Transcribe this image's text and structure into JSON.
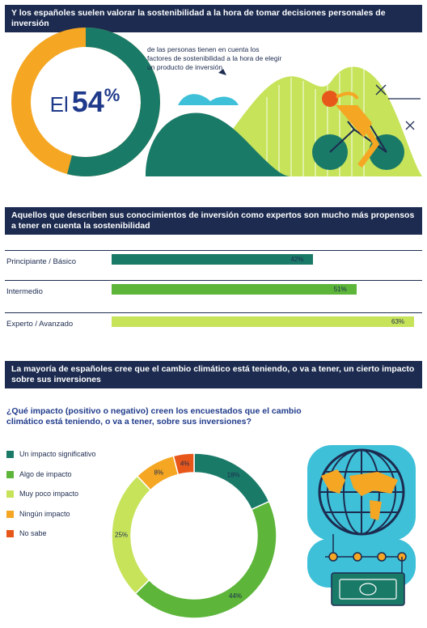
{
  "banner1": "Y los españoles suelen valorar la sostenibilidad a la hora de tomar decisiones personales de inversión",
  "stat": {
    "prefix": "El",
    "number": "54",
    "suffix": "%",
    "value": 54,
    "description": "de las personas tienen en cuenta los factores de sostenibilidad a la hora de elegir un producto de inversión"
  },
  "banner2": "Aquellos que describen sus conocimientos de inversión como expertos son mucho más propensos a tener en cuenta la sostenibilidad",
  "banner3": "La mayoría de españoles cree que el cambio climático está teniendo, o va a tener, un cierto impacto sobre sus inversiones",
  "question": "¿Qué impacto (positivo o negativo) creen los encuestados que el cambio climático está teniendo, o va a tener, sobre sus inversiones?",
  "colors": {
    "navy": "#1c2b4f",
    "teal": "#1a7a68",
    "green": "#5db53a",
    "light_green": "#c6e35a",
    "orange": "#f5a623",
    "red_orange": "#e8571a"
  },
  "chart_data": [
    {
      "type": "bar",
      "categories": [
        "Principiante / Básico",
        "Intermedio",
        "Experto / Avanzado"
      ],
      "values": [
        42,
        51,
        63
      ],
      "value_labels": [
        "42%",
        "51%",
        "63%"
      ],
      "colors": [
        "#1a7a68",
        "#5db53a",
        "#c6e35a"
      ],
      "xlim": [
        0,
        100
      ]
    },
    {
      "type": "pie",
      "categories": [
        "Un impacto significativo",
        "Algo de impacto",
        "Muy poco impacto",
        "Ningún impacto",
        "No sabe"
      ],
      "values": [
        18,
        44,
        25,
        8,
        4
      ],
      "value_labels": [
        "18%",
        "44%",
        "25%",
        "8%",
        "4%"
      ],
      "colors": [
        "#1a7a68",
        "#5db53a",
        "#c6e35a",
        "#f5a623",
        "#e8571a"
      ]
    }
  ]
}
